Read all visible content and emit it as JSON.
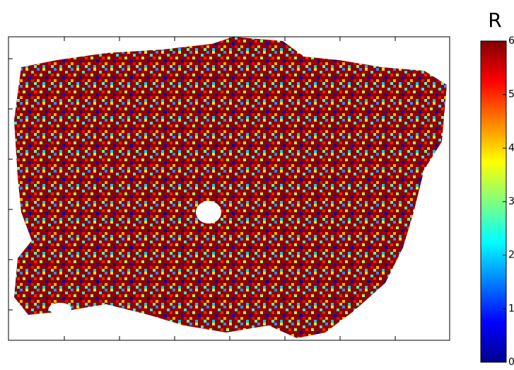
{
  "chart_data": {
    "type": "heatmap",
    "colormap": "jet",
    "colorbar_label": "R",
    "clim": [
      0,
      6
    ],
    "cticks": [
      0,
      1,
      2,
      3,
      4,
      5,
      6
    ]
  }
}
